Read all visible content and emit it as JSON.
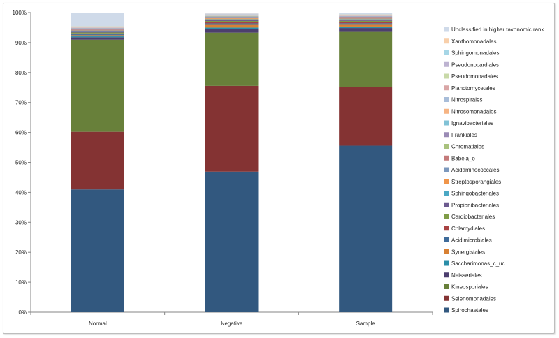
{
  "chart_data": {
    "type": "bar",
    "stacked": true,
    "stack_mode": "percent",
    "categories": [
      "Normal",
      "Negative",
      "Sample"
    ],
    "ylim": [
      0,
      100
    ],
    "yticks": [
      "0%",
      "10%",
      "20%",
      "30%",
      "40%",
      "50%",
      "60%",
      "70%",
      "80%",
      "90%",
      "100%"
    ],
    "grid": false,
    "legend_position": "right",
    "series": [
      {
        "name": "Spirochaetales",
        "color": "#32587f",
        "values": [
          41.3,
          47.0,
          56.2
        ]
      },
      {
        "name": "Selenomonadales",
        "color": "#843333",
        "values": [
          19.4,
          28.7,
          19.8
        ]
      },
      {
        "name": "Kineosporiales",
        "color": "#68803a",
        "values": [
          31.0,
          17.8,
          18.6
        ]
      },
      {
        "name": "Neisseriales",
        "color": "#4c3e6e",
        "values": [
          0.8,
          1.2,
          1.3
        ]
      },
      {
        "name": "Saccharimonas_c_uc",
        "color": "#2a8ea8",
        "values": [
          0.3,
          0.5,
          0.5
        ]
      },
      {
        "name": "Synergistales",
        "color": "#d88033",
        "values": [
          0.4,
          0.9,
          0.6
        ]
      },
      {
        "name": "Acidimicrobiales",
        "color": "#3f6b9a",
        "values": [
          0.3,
          0.5,
          0.5
        ]
      },
      {
        "name": "Chlamydiales",
        "color": "#a84343",
        "values": [
          0.3,
          0.4,
          0.4
        ]
      },
      {
        "name": "Cardiobacteriales",
        "color": "#7f9c47",
        "values": [
          0.3,
          0.4,
          0.4
        ]
      },
      {
        "name": "Propionibacteriales",
        "color": "#6c5a8f",
        "values": [
          0.3,
          0.3,
          0.3
        ]
      },
      {
        "name": "Sphingobacteriales",
        "color": "#4aa8c4",
        "values": [
          0.2,
          0.3,
          0.3
        ]
      },
      {
        "name": "Streptosporangiales",
        "color": "#f0954a",
        "values": [
          0.2,
          0.3,
          0.2
        ]
      },
      {
        "name": "Acidaminococcales",
        "color": "#7c98bd",
        "values": [
          0.2,
          0.2,
          0.2
        ]
      },
      {
        "name": "Babela_o",
        "color": "#c47a7a",
        "values": [
          0.2,
          0.2,
          0.2
        ]
      },
      {
        "name": "Chromatiales",
        "color": "#a9c27e",
        "values": [
          0.2,
          0.2,
          0.2
        ]
      },
      {
        "name": "Frankiales",
        "color": "#9a8bb5",
        "values": [
          0.1,
          0.1,
          0.1
        ]
      },
      {
        "name": "Ignavibacteriales",
        "color": "#81c2d6",
        "values": [
          0.1,
          0.1,
          0.1
        ]
      },
      {
        "name": "Nitrosomonadales",
        "color": "#f6b483",
        "values": [
          0.1,
          0.1,
          0.1
        ]
      },
      {
        "name": "Nitrospirales",
        "color": "#a8bdd9",
        "values": [
          0.1,
          0.1,
          0.1
        ]
      },
      {
        "name": "Planctomycetales",
        "color": "#d9a6a6",
        "values": [
          0.1,
          0.1,
          0.1
        ]
      },
      {
        "name": "Pseudomonadales",
        "color": "#c8d9a8",
        "values": [
          0.1,
          0.1,
          0.1
        ]
      },
      {
        "name": "Pseudonocardiales",
        "color": "#bdb3d1",
        "values": [
          0.1,
          0.1,
          0.1
        ]
      },
      {
        "name": "Sphingomonadales",
        "color": "#a6d6e6",
        "values": [
          0.1,
          0.1,
          0.1
        ]
      },
      {
        "name": "Xanthomonadales",
        "color": "#f8cfaa",
        "values": [
          0.1,
          0.1,
          0.1
        ]
      },
      {
        "name": "Unclassified in higher taxonomic rank",
        "color": "#cfdae9",
        "values": [
          4.5,
          0.4,
          0.5
        ]
      }
    ]
  }
}
